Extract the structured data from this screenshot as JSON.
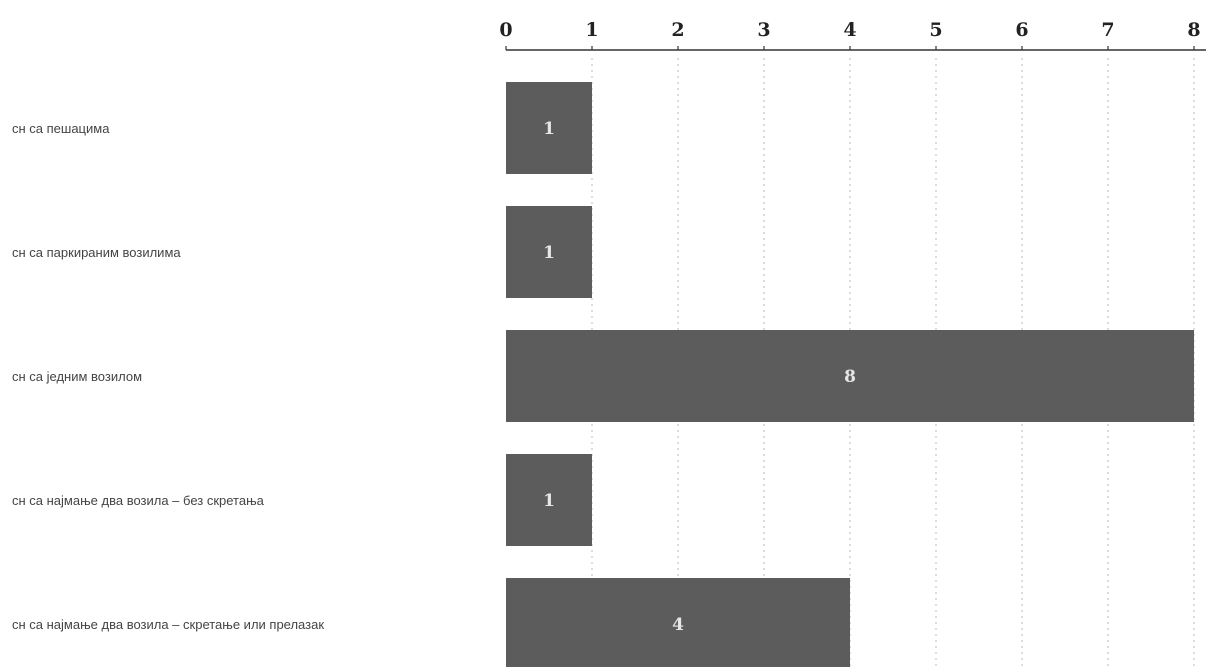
{
  "chart_data": {
    "type": "bar",
    "orientation": "horizontal",
    "title": "",
    "xlabel": "",
    "ylabel": "",
    "categories": [
      "сн са пешацима",
      "сн са паркираним возилима",
      "сн са једним возилом",
      "сн са најмање два возила – без скретања",
      "сн са најмање два возила – скретање или прелазак"
    ],
    "values": [
      1,
      1,
      8,
      1,
      4
    ],
    "data_labels": [
      "1",
      "1",
      "8",
      "1",
      "4"
    ],
    "xlim": [
      0,
      8
    ],
    "x_ticks": [
      "0",
      "1",
      "2",
      "3",
      "4",
      "5",
      "6",
      "7",
      "8"
    ],
    "x_axis_position": "top",
    "grid": "dotted vertical",
    "legend": "none",
    "bar_color": "#5c5c5c",
    "label_color": "#e6e6e6"
  }
}
